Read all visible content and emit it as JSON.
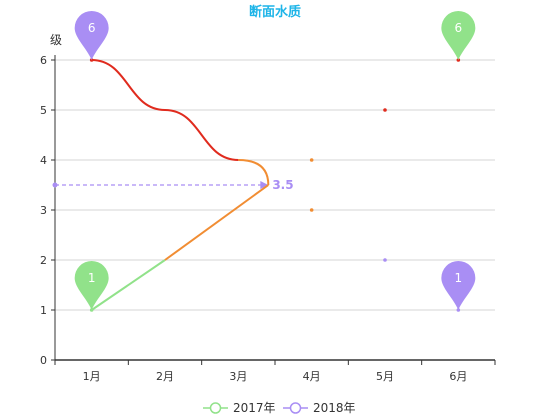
{
  "chart_data": {
    "type": "line",
    "title": "断面水质",
    "title_color": "#1fb5e8",
    "ylabel": "级",
    "xlabel": "",
    "categories": [
      "1月",
      "2月",
      "3月",
      "4月",
      "5月",
      "6月"
    ],
    "ylim": [
      0,
      6
    ],
    "yticks": [
      "0",
      "1",
      "2",
      "3",
      "4",
      "5",
      "6"
    ],
    "grid": true,
    "legend_position": "bottom",
    "series": [
      {
        "name": "2017年",
        "legend_color": "#91e28a",
        "values": [
          1,
          2,
          3,
          3,
          null,
          null
        ]
      },
      {
        "name": "2018年",
        "legend_color": "#a98ef4",
        "values": [
          6,
          5,
          4,
          4,
          5,
          6
        ]
      }
    ],
    "visual_bands": [
      {
        "range": "below 2",
        "color": "#91e28a"
      },
      {
        "range": "2 to 3.5",
        "color": "#f18d33"
      },
      {
        "range": "3.5 to 4",
        "color": "#f18d33"
      },
      {
        "range": "above 4",
        "color": "#e02b1e"
      }
    ],
    "markpoints": [
      {
        "label": "6",
        "category": "1月",
        "value": 6,
        "color": "#a98ef4"
      },
      {
        "label": "6",
        "category": "6月",
        "value": 6,
        "color": "#91e28a"
      },
      {
        "label": "1",
        "category": "1月",
        "value": 1,
        "color": "#91e28a"
      },
      {
        "label": "1",
        "category": "6月",
        "value": 1,
        "color": "#a98ef4"
      }
    ],
    "markline": {
      "label": "3.5",
      "value": 3.5,
      "color": "#a98ef4",
      "style": "dashed"
    },
    "scatter_dots": [
      {
        "category": "4月",
        "value": 4,
        "color": "#f18d33"
      },
      {
        "category": "4月",
        "value": 3,
        "color": "#f18d33"
      },
      {
        "category": "5月",
        "value": 5,
        "color": "#e02b1e"
      },
      {
        "category": "5月",
        "value": 2,
        "color": "#a98ef4"
      },
      {
        "category": "6月",
        "value": 6,
        "color": "#e02b1e"
      },
      {
        "category": "6月",
        "value": 1,
        "color": "#a98ef4"
      }
    ]
  }
}
